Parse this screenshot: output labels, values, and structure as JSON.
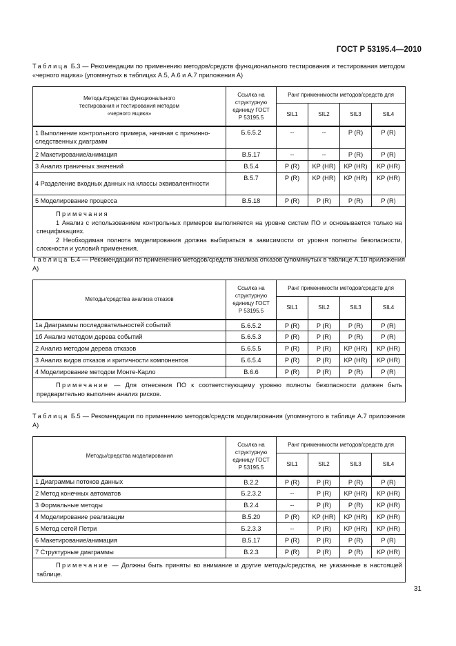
{
  "header": "ГОСТ Р 53195.4—2010",
  "page_number": "31",
  "common": {
    "ref_header": "Ссылка на структурную единицу ГОСТ Р 53195.5",
    "rank_header": "Ранг применимости методов/средств для",
    "sil": [
      "SIL1",
      "SIL2",
      "SIL3",
      "SIL4"
    ],
    "caption_word": "Таблица"
  },
  "tables": [
    {
      "caption_label": "Таблица",
      "caption": " Б.3 — Рекомендации по применению методов/средств функционального тестирования и тестирования методом «черного ящика» (упомянутых в таблицах А.5, А.6 и А.7 приложения А)",
      "method_header": "Методы/средства функционального тестирования и тестирования методом «черного ящика»",
      "rows": [
        {
          "method": "1  Выполнение контрольного примера, начиная с причинно-следственных диаграмм",
          "ref": "Б.6.5.2",
          "values": [
            "--",
            "--",
            "P (R)",
            "P (R)"
          ],
          "tall": true
        },
        {
          "method": "2  Макетирование/анимация",
          "ref": "В.5.17",
          "values": [
            "--",
            "--",
            "P (R)",
            "P (R)"
          ]
        },
        {
          "method": "3  Анализ граничных значений",
          "ref": "В.5.4",
          "values": [
            "P (R)",
            "KP (HR)",
            "KP (HR)",
            "KP (HR)"
          ]
        },
        {
          "method": "4  Разделение входных данных на классы эквивалентности",
          "ref": "В.5.7",
          "values": [
            "P (R)",
            "KP (HR)",
            "KP (HR)",
            "KP (HR)"
          ],
          "tall": true
        },
        {
          "method": "5  Моделирование процесса",
          "ref": "В.5.18",
          "values": [
            "P (R)",
            "P (R)",
            "P (R)",
            "P (R)"
          ]
        }
      ],
      "notes_title": "Примечания",
      "notes": [
        "1  Анализ с использованием контрольных примеров выполняется на уровне систем ПО и основывается только на спецификациях.",
        "2  Необходимая полнота моделирования должна выбираться в зависимости от уровня полноты безопасности, сложности и условий применения."
      ]
    },
    {
      "caption_label": "Таблица",
      "caption": " Б.4 — Рекомендации по применению методов/средств анализа отказов (упомянутых в таблице А.10 приложения А)",
      "method_header": "Методы/средства анализа отказов",
      "rows": [
        {
          "method": "1а  Диаграммы последовательностей событий",
          "ref": "Б.6.5.2",
          "values": [
            "P (R)",
            "P (R)",
            "P (R)",
            "P (R)"
          ]
        },
        {
          "method": "1б  Анализ методом дерева событий",
          "ref": "Б.6.5.3",
          "values": [
            "P (R)",
            "P (R)",
            "P (R)",
            "P (R)"
          ]
        },
        {
          "method": "2  Анализ методом дерева отказов",
          "ref": "Б.6.5.5",
          "values": [
            "P (R)",
            "P (R)",
            "KP (HR)",
            "KP (HR)"
          ]
        },
        {
          "method": "3  Анализ видов отказов и критичности компонентов",
          "ref": "Б.6.5.4",
          "values": [
            "P (R)",
            "P (R)",
            "KP (HR)",
            "KP (HR)"
          ]
        },
        {
          "method": "4  Моделирование методом Монте-Карло",
          "ref": "В.6.6",
          "values": [
            "P (R)",
            "P (R)",
            "P (R)",
            "P (R)"
          ]
        }
      ],
      "note_label": "Примечание",
      "note": " — Для отнесения ПО к соответствующему уровню полноты безопасности должен быть предварительно выполнен анализ рисков."
    },
    {
      "caption_label": "Таблица",
      "caption": " Б.5 — Рекомендации по применению методов/средств моделирования (упомянутого в таблице А.7 приложения А)",
      "method_header": "Методы/средства моделирования",
      "rows": [
        {
          "method": "1  Диаграммы потоков данных",
          "ref": "В.2.2",
          "values": [
            "P (R)",
            "P (R)",
            "P (R)",
            "P (R)"
          ]
        },
        {
          "method": "2  Метод конечных автоматов",
          "ref": "Б.2.3.2",
          "values": [
            "--",
            "P (R)",
            "KP (HR)",
            "KP (HR)"
          ]
        },
        {
          "method": "3  Формальные методы",
          "ref": "В.2.4",
          "values": [
            "--",
            "P (R)",
            "P (R)",
            "KP (HR)"
          ]
        },
        {
          "method": "4  Моделирование реализации",
          "ref": "В.5.20",
          "values": [
            "P (R)",
            "KP (HR)",
            "KP (HR)",
            "KP (HR)"
          ]
        },
        {
          "method": "5  Метод сетей Петри",
          "ref": "Б.2.3.3",
          "values": [
            "--",
            "P (R)",
            "KP (HR)",
            "KP (HR)"
          ]
        },
        {
          "method": "6  Макетирование/анимация",
          "ref": "В.5.17",
          "values": [
            "P (R)",
            "P (R)",
            "P (R)",
            "P (R)"
          ]
        },
        {
          "method": "7  Структурные диаграммы",
          "ref": "В.2.3",
          "values": [
            "P (R)",
            "P (R)",
            "P (R)",
            "KP (HR)"
          ]
        }
      ],
      "note_label": "Примечание",
      "note": " — Должны быть приняты во внимание и другие методы/средства, не указанные в настоящей таблице."
    }
  ]
}
